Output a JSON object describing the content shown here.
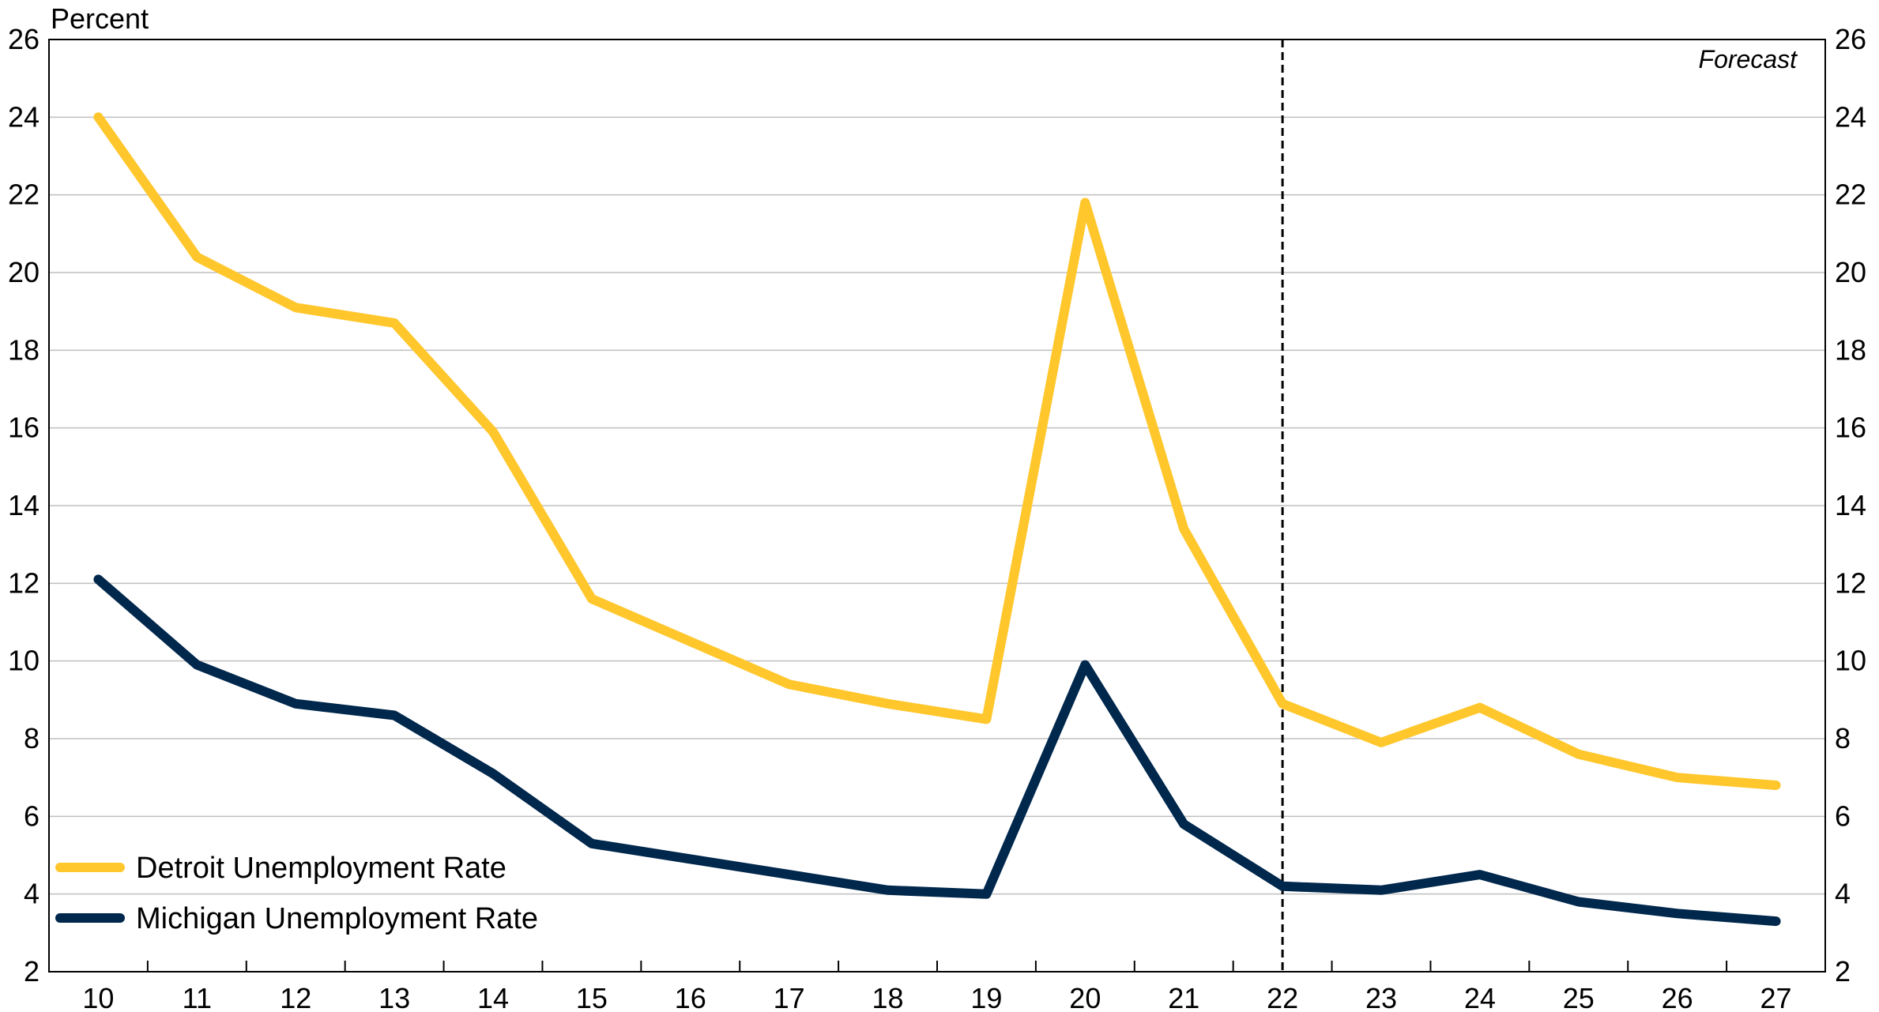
{
  "chart_data": {
    "type": "line",
    "ylabel": "Percent",
    "ylim": [
      2,
      26
    ],
    "yticks": [
      2,
      4,
      6,
      8,
      10,
      12,
      14,
      16,
      18,
      20,
      22,
      24,
      26
    ],
    "categories": [
      "10",
      "11",
      "12",
      "13",
      "14",
      "15",
      "16",
      "17",
      "18",
      "19",
      "20",
      "21",
      "22",
      "23",
      "24",
      "25",
      "26",
      "27"
    ],
    "forecast_start": "22",
    "forecast_label": "Forecast",
    "grid": true,
    "legend_position": "bottom-left",
    "series": [
      {
        "name": "Detroit Unemployment Rate",
        "color": "#FFC72C",
        "values": [
          24.0,
          20.4,
          19.1,
          18.7,
          15.9,
          11.6,
          10.5,
          9.4,
          8.9,
          8.5,
          21.8,
          13.4,
          8.9,
          7.9,
          8.8,
          7.6,
          7.0,
          6.8
        ]
      },
      {
        "name": "Michigan Unemployment Rate",
        "color": "#00274C",
        "values": [
          12.1,
          9.9,
          8.9,
          8.6,
          7.1,
          5.3,
          4.9,
          4.5,
          4.1,
          4.0,
          9.9,
          5.8,
          4.2,
          4.1,
          4.5,
          3.8,
          3.5,
          3.3
        ]
      }
    ]
  }
}
